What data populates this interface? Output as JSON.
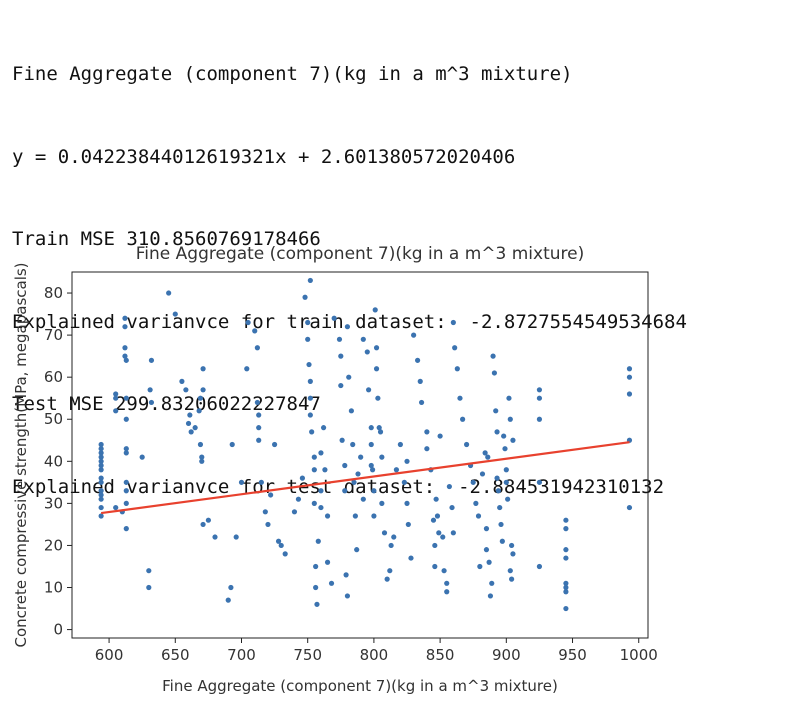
{
  "output": {
    "line1": "Fine Aggregate (component 7)(kg in a m^3 mixture)",
    "line2": "y = 0.04223844012619321x + 2.601380572020406",
    "line3": "Train MSE 310.8560769178466",
    "line4": "Explained varianvce for train dataset:  -2.8727554549534684",
    "line5": "Test MSE 299.83206022227847",
    "line6": "Explained varianvce for test dataset:  -2.884531942310132"
  },
  "chart_data": {
    "type": "scatter",
    "title": "Fine Aggregate (component 7)(kg in a m^3 mixture)",
    "xlabel": "Fine Aggregate (component 7)(kg in a m^3 mixture)",
    "ylabel": "Concrete compressive strength(MPa, megapascals)",
    "xlim": [
      572,
      1007
    ],
    "ylim": [
      -2,
      85
    ],
    "xticks": [
      600,
      650,
      700,
      750,
      800,
      850,
      900,
      950,
      1000
    ],
    "yticks": [
      0,
      10,
      20,
      30,
      40,
      50,
      60,
      70,
      80
    ],
    "grid": false,
    "colors": {
      "points": "#3b73b0",
      "fit": "#e8412e"
    },
    "fit_line": {
      "slope": 0.04223844012619321,
      "intercept": 2.601380572020406,
      "x_range": [
        594,
        993
      ]
    },
    "series": [
      {
        "x": [
          594,
          594,
          594,
          594,
          594,
          594,
          594,
          594,
          594,
          594,
          594,
          594,
          594,
          594,
          605,
          605,
          605,
          605,
          610,
          612,
          612,
          612,
          612,
          613,
          613,
          613,
          613,
          613,
          613,
          613,
          613,
          613,
          625,
          630,
          630,
          631,
          632,
          632,
          645,
          650,
          655,
          658,
          660,
          661,
          662,
          665,
          668,
          669,
          669,
          670,
          670,
          671,
          671,
          671,
          675,
          680,
          690,
          692,
          693,
          696,
          700,
          704,
          705,
          710,
          712,
          712,
          713,
          713,
          713,
          715,
          718,
          720,
          722,
          725,
          728,
          730,
          733,
          740,
          743,
          746,
          748,
          750,
          750,
          751,
          752,
          752,
          752,
          752,
          753,
          755,
          755,
          755,
          756,
          756,
          757,
          758,
          760,
          760,
          760,
          762,
          763,
          765,
          765,
          768,
          770,
          774,
          775,
          775,
          776,
          778,
          778,
          779,
          780,
          780,
          781,
          783,
          784,
          785,
          786,
          787,
          788,
          790,
          792,
          792,
          795,
          796,
          798,
          798,
          798,
          799,
          800,
          800,
          801,
          802,
          802,
          803,
          804,
          805,
          806,
          806,
          808,
          810,
          812,
          813,
          815,
          817,
          820,
          823,
          825,
          825,
          826,
          828,
          830,
          833,
          835,
          836,
          840,
          840,
          843,
          845,
          846,
          846,
          847,
          848,
          849,
          850,
          852,
          853,
          855,
          855,
          857,
          859,
          860,
          860,
          861,
          863,
          865,
          867,
          870,
          873,
          875,
          877,
          879,
          880,
          882,
          884,
          885,
          885,
          886,
          887,
          888,
          889,
          890,
          891,
          892,
          893,
          893,
          894,
          895,
          896,
          897,
          898,
          899,
          900,
          900,
          901,
          902,
          903,
          903,
          904,
          904,
          905,
          905,
          925,
          925,
          925,
          925,
          925,
          945,
          945,
          945,
          945,
          945,
          945,
          945,
          945,
          993,
          993,
          993,
          993,
          993
        ],
        "y": [
          29,
          31,
          33,
          35,
          36,
          38,
          39,
          40,
          41,
          42,
          43,
          44,
          27,
          32,
          56,
          55,
          52,
          29,
          28,
          74,
          72,
          67,
          65,
          50,
          42,
          35,
          33,
          30,
          24,
          64,
          55,
          43,
          41,
          14,
          10,
          57,
          54,
          64,
          80,
          75,
          59,
          57,
          49,
          51,
          47,
          48,
          52,
          55,
          44,
          40,
          41,
          57,
          62,
          25,
          26,
          22,
          7,
          10,
          44,
          22,
          35,
          62,
          73,
          71,
          67,
          54,
          51,
          48,
          45,
          35,
          28,
          25,
          32,
          44,
          21,
          20,
          18,
          28,
          31,
          36,
          79,
          73,
          69,
          63,
          59,
          55,
          51,
          83,
          47,
          41,
          38,
          30,
          15,
          10,
          6,
          21,
          29,
          33,
          42,
          48,
          38,
          27,
          16,
          11,
          74,
          69,
          65,
          58,
          45,
          39,
          33,
          13,
          8,
          72,
          60,
          52,
          44,
          35,
          27,
          19,
          37,
          41,
          31,
          69,
          66,
          57,
          48,
          44,
          39,
          38,
          33,
          27,
          76,
          67,
          62,
          55,
          48,
          47,
          41,
          30,
          23,
          12,
          14,
          20,
          22,
          38,
          44,
          35,
          40,
          30,
          25,
          17,
          70,
          64,
          59,
          54,
          47,
          43,
          38,
          26,
          20,
          15,
          31,
          27,
          23,
          46,
          22,
          14,
          11,
          9,
          34,
          29,
          23,
          73,
          67,
          62,
          55,
          50,
          44,
          39,
          35,
          30,
          27,
          15,
          37,
          42,
          24,
          19,
          41,
          16,
          8,
          11,
          65,
          61,
          52,
          47,
          36,
          33,
          29,
          25,
          21,
          46,
          43,
          38,
          35,
          31,
          55,
          50,
          14,
          12,
          20,
          18,
          45,
          57,
          55,
          50,
          35,
          15,
          26,
          24,
          19,
          17,
          11,
          10,
          5,
          9,
          62,
          60,
          56,
          45,
          29
        ]
      }
    ]
  }
}
